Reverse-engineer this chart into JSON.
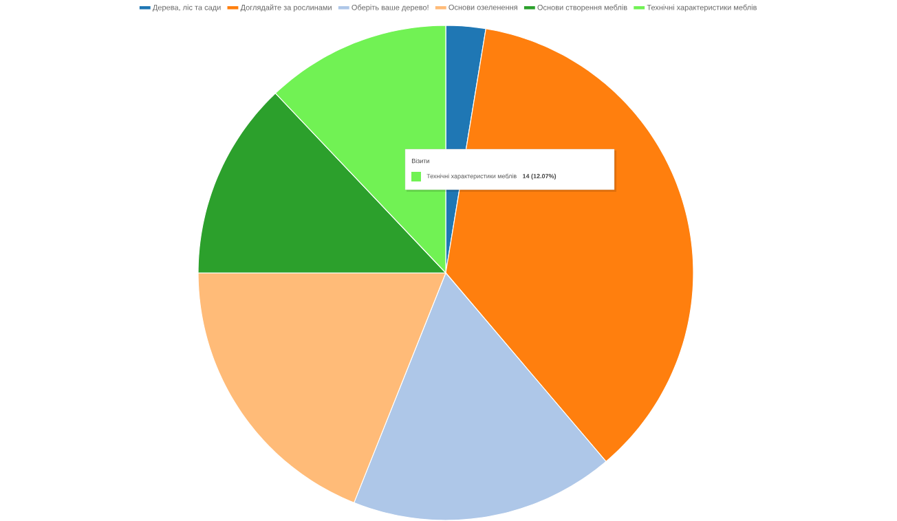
{
  "chart_data": {
    "type": "pie",
    "categories": [
      "Дерева, ліс та сади",
      "Доглядайте за рослинами",
      "Оберіть ваше дерево!",
      "Основи озеленення",
      "Основи створення меблів",
      "Технічні характеристики меблів"
    ],
    "values": [
      2.59,
      36.21,
      17.24,
      18.96,
      12.93,
      12.07
    ],
    "colors": [
      "#1f77b4",
      "#ff7f0e",
      "#aec7e8",
      "#ffbb78",
      "#2ca02c",
      "#71f254"
    ],
    "legend": "top",
    "annotations": [
      "Візити",
      "Технічні характеристики меблів",
      "14 (12.07%)"
    ]
  }
}
